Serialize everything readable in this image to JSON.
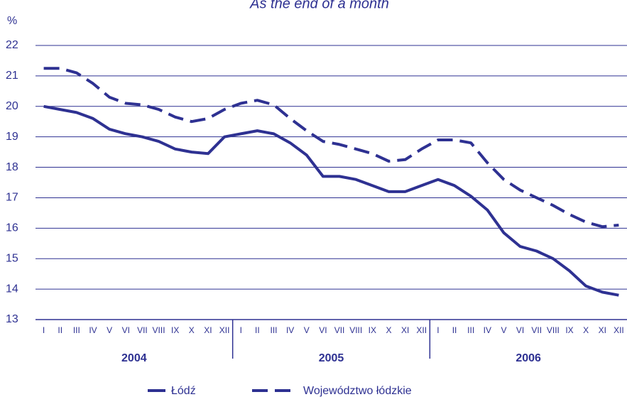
{
  "chart_data": {
    "type": "line",
    "title": "As the end of a month",
    "y_unit": "%",
    "categories": [
      "I",
      "II",
      "III",
      "IV",
      "V",
      "VI",
      "VII",
      "VIII",
      "IX",
      "X",
      "XI",
      "XII",
      "I",
      "II",
      "III",
      "IV",
      "V",
      "VI",
      "VII",
      "VIII",
      "IX",
      "X",
      "XI",
      "XII",
      "I",
      "II",
      "III",
      "IV",
      "V",
      "VI",
      "VII",
      "VIII",
      "IX",
      "X",
      "XI",
      "XII"
    ],
    "years": [
      "2004",
      "2005",
      "2006"
    ],
    "series": [
      {
        "name": "Łódź",
        "color": "#2e3192",
        "dash": false,
        "values": [
          20.0,
          19.9,
          19.8,
          19.6,
          19.25,
          19.1,
          19.0,
          18.85,
          18.6,
          18.5,
          18.45,
          19.0,
          19.1,
          19.2,
          19.1,
          18.8,
          18.4,
          17.7,
          17.7,
          17.6,
          17.4,
          17.2,
          17.2,
          17.4,
          17.6,
          17.4,
          17.05,
          16.6,
          15.85,
          15.4,
          15.25,
          15.0,
          14.6,
          14.1,
          13.9,
          13.8
        ]
      },
      {
        "name": "Województwo łódzkie",
        "color": "#2e3192",
        "dash": true,
        "values": [
          21.25,
          21.25,
          21.1,
          20.75,
          20.3,
          20.1,
          20.05,
          19.9,
          19.65,
          19.5,
          19.6,
          19.9,
          20.1,
          20.2,
          20.05,
          19.6,
          19.2,
          18.85,
          18.75,
          18.6,
          18.45,
          18.2,
          18.25,
          18.6,
          18.9,
          18.9,
          18.8,
          18.15,
          17.6,
          17.25,
          17.0,
          16.75,
          16.45,
          16.2,
          16.05,
          16.1
        ]
      }
    ],
    "ylim": [
      13,
      22
    ],
    "yticks": [
      13,
      14,
      15,
      16,
      17,
      18,
      19,
      20,
      21,
      22
    ],
    "grid": true
  }
}
